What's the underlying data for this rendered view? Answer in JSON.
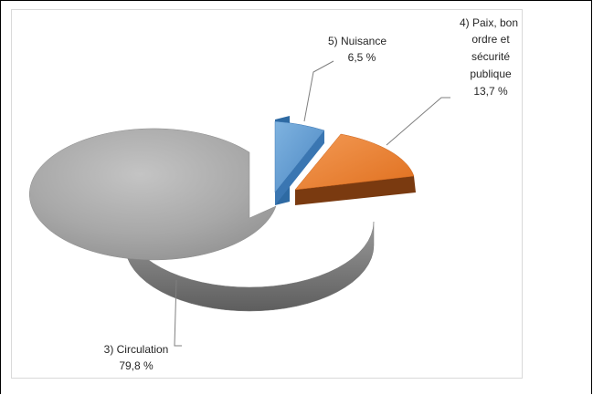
{
  "chart_data": {
    "type": "pie",
    "title": "",
    "slices": [
      {
        "label": "5) Nuisance",
        "value": 6.5,
        "value_label": "6,5 %",
        "color": "#5B9BD5",
        "exploded": true
      },
      {
        "label": "4) Paix, bon ordre et sécurité publique",
        "value": 13.7,
        "value_label": "13,7 %",
        "color": "#ED7D31",
        "exploded": true
      },
      {
        "label": "3) Circulation",
        "value": 79.8,
        "value_label": "79,8 %",
        "color": "#A5A5A5",
        "exploded": false
      }
    ],
    "legend": "none",
    "three_d": true
  },
  "labels": {
    "nuisance": {
      "name": "5) Nuisance",
      "value": "6,5 %"
    },
    "paix": {
      "lines": [
        "4) Paix, bon",
        "ordre et",
        "sécurité",
        "publique"
      ],
      "value": "13,7 %"
    },
    "circulation": {
      "name": "3) Circulation",
      "value": "79,8 %"
    }
  }
}
